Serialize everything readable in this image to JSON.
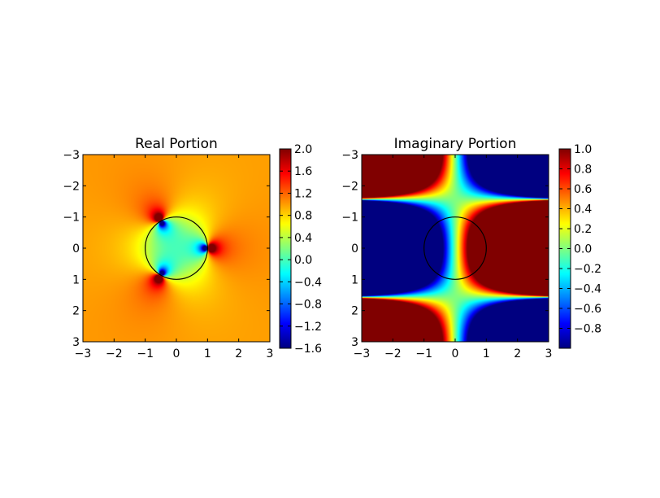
{
  "chart_data": [
    {
      "type": "heatmap",
      "title": "Real Portion",
      "xlabel": "",
      "ylabel": "",
      "xlim": [
        -3,
        3
      ],
      "ylim": [
        -3,
        3
      ],
      "x_ticks": [
        "−3",
        "−2",
        "−1",
        "0",
        "1",
        "2",
        "3"
      ],
      "y_ticks": [
        "−3",
        "−2",
        "−1",
        "0",
        "1",
        "2",
        "3"
      ],
      "y_axis_inverted": true,
      "colormap": "jet",
      "function": "real(z^3/(z^3-1))",
      "colorbar": {
        "range": [
          -1.6,
          2.0
        ],
        "ticks": [
          "2.0",
          "1.6",
          "1.2",
          "0.8",
          "0.4",
          "0.0",
          "−0.4",
          "−0.8",
          "−1.2",
          "−1.6"
        ]
      },
      "overlay": {
        "shape": "circle",
        "center": [
          0,
          0
        ],
        "radius": 1,
        "color": "#000000"
      }
    },
    {
      "type": "heatmap",
      "title": "Imaginary Portion",
      "xlabel": "",
      "ylabel": "",
      "xlim": [
        -3,
        3
      ],
      "ylim": [
        -3,
        3
      ],
      "x_ticks": [
        "−3",
        "−2",
        "−1",
        "0",
        "1",
        "2",
        "3"
      ],
      "y_ticks": [
        "−3",
        "−2",
        "−1",
        "0",
        "1",
        "2",
        "3"
      ],
      "y_axis_inverted": true,
      "colormap": "jet",
      "function": "imag(2.5·sin(i·z))",
      "colorbar": {
        "range": [
          -1.0,
          1.0
        ],
        "ticks": [
          "1.0",
          "0.8",
          "0.6",
          "0.4",
          "0.2",
          "0.0",
          "−0.2",
          "−0.4",
          "−0.6",
          "−0.8"
        ]
      },
      "overlay": {
        "shape": "circle",
        "center": [
          0,
          0
        ],
        "radius": 1,
        "color": "#000000"
      }
    }
  ]
}
